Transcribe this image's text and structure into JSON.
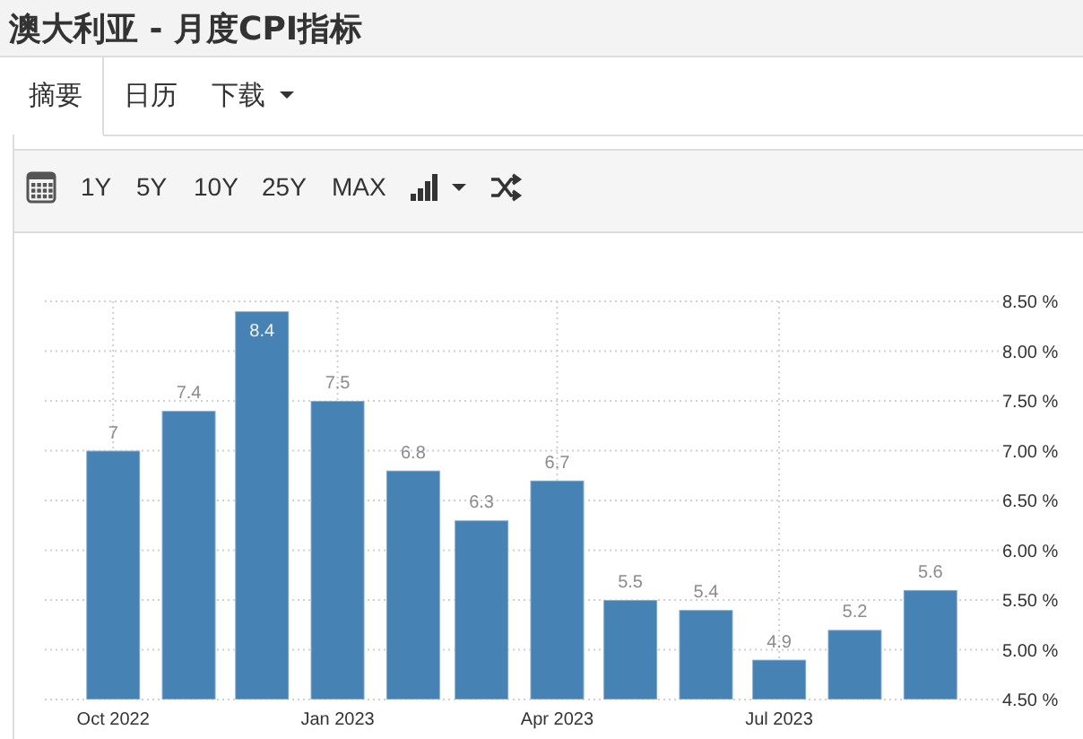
{
  "chart_data": {
    "type": "bar",
    "title": "澳大利亚 - 月度CPI指标",
    "x": [
      "2022-10",
      "2022-11",
      "2022-12",
      "2023-01",
      "2023-02",
      "2023-03",
      "2023-04",
      "2023-05",
      "2023-06",
      "2023-07",
      "2023-08",
      "2023-09"
    ],
    "values": [
      7,
      7.4,
      8.4,
      7.5,
      6.8,
      6.3,
      6.7,
      5.5,
      5.4,
      4.9,
      5.2,
      5.6
    ],
    "color": "#4682b4",
    "xlim": [
      "2022-09-03",
      "2023-09-29"
    ],
    "xticks": [
      {
        "value": "2022-10",
        "label": "Oct 2022"
      },
      {
        "value": "2023-01",
        "label": "Jan 2023"
      },
      {
        "value": "2023-04",
        "label": "Apr 2023"
      },
      {
        "value": "2023-07",
        "label": "Jul 2023"
      }
    ],
    "ylim": [
      4.5,
      8.5
    ],
    "yticks": [
      {
        "value": 4.5,
        "label": "4.50 %"
      },
      {
        "value": 5,
        "label": "5.00 %"
      },
      {
        "value": 5.5,
        "label": "5.50 %"
      },
      {
        "value": 6,
        "label": "6.00 %"
      },
      {
        "value": 6.5,
        "label": "6.50 %"
      },
      {
        "value": 7,
        "label": "7.00 %"
      },
      {
        "value": 7.5,
        "label": "7.50 %"
      },
      {
        "value": 8,
        "label": "8.00 %"
      },
      {
        "value": 8.5,
        "label": "8.50 %"
      }
    ],
    "grid": true,
    "data_labels": true,
    "annotations": [
      "摘要",
      "日历",
      "下载",
      "1Y",
      "5Y",
      "10Y",
      "25Y",
      "MAX"
    ]
  }
}
